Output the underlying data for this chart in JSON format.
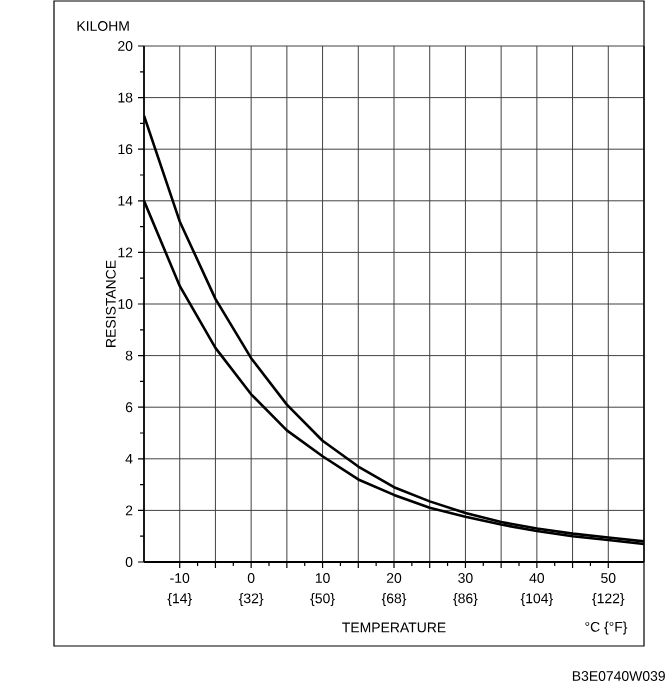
{
  "chart_data": {
    "type": "line",
    "xlabel": "TEMPERATURE",
    "ylabel": "RESISTANCE",
    "annotations": [
      "KILOHM",
      "°C {°F}",
      "B3E0740W039"
    ],
    "x": [
      -15,
      -10,
      -5,
      0,
      5,
      10,
      15,
      20,
      25,
      30,
      35,
      40,
      45,
      50,
      55
    ],
    "series": [
      {
        "color": "#000000",
        "values": [
          17.3,
          13.2,
          10.2,
          7.9,
          6.1,
          4.7,
          3.7,
          2.9,
          2.35,
          1.9,
          1.55,
          1.3,
          1.1,
          0.95,
          0.8
        ]
      },
      {
        "color": "#000000",
        "values": [
          14.0,
          10.7,
          8.3,
          6.5,
          5.1,
          4.1,
          3.2,
          2.6,
          2.1,
          1.75,
          1.45,
          1.2,
          1.0,
          0.85,
          0.7
        ]
      }
    ],
    "xlim": [
      -15,
      55
    ],
    "ylim": [
      0,
      20
    ],
    "xticks": [
      -10,
      {
        "value": -5,
        "label": null
      },
      0,
      {
        "value": 5,
        "label": null
      },
      10,
      {
        "value": 15,
        "label": null
      },
      20,
      {
        "value": 25,
        "label": null
      },
      30,
      {
        "value": 35,
        "label": null
      },
      40,
      {
        "value": 45,
        "label": null
      },
      50
    ],
    "x2lim": [
      5,
      131
    ],
    "x2ticks": [
      {
        "value": 14,
        "label": "{14}"
      },
      {
        "value": 32,
        "label": "{32}"
      },
      {
        "value": 50,
        "label": "{50}"
      },
      {
        "value": 68,
        "label": "{68}"
      },
      {
        "value": 86,
        "label": "{86}"
      },
      {
        "value": 104,
        "label": "{104}"
      },
      {
        "value": 122,
        "label": "{122}"
      }
    ],
    "yticks": [
      0,
      2,
      4,
      6,
      8,
      10,
      12,
      14,
      16,
      18,
      20
    ],
    "grid": true,
    "marker": "none",
    "line_style": "solid"
  }
}
